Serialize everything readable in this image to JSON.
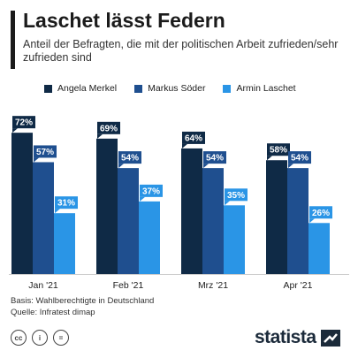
{
  "header": {
    "title": "Laschet lässt Federn",
    "subtitle": "Anteil der Befragten, die mit der politischen Arbeit zufrieden/sehr zufrieden sind"
  },
  "colors": {
    "merkel": "#0f2a46",
    "soeder": "#1f4f8f",
    "laschet": "#2a95e6"
  },
  "chart_data": {
    "type": "bar",
    "categories": [
      "Jan '21",
      "Feb '21",
      "Mrz '21",
      "Apr '21"
    ],
    "series": [
      {
        "name": "Angela Merkel",
        "values": [
          72,
          69,
          64,
          58
        ]
      },
      {
        "name": "Markus Söder",
        "values": [
          57,
          54,
          54,
          54
        ]
      },
      {
        "name": "Armin Laschet",
        "values": [
          31,
          37,
          35,
          26
        ]
      }
    ],
    "value_suffix": "%",
    "ylim": [
      0,
      80
    ],
    "legend_position": "top",
    "grid": false
  },
  "footer": {
    "basis": "Basis: Wahlberechtigte in Deutschland",
    "source": "Quelle: Infratest dimap"
  },
  "icons": [
    "cc-icon",
    "by-icon",
    "nd-icon"
  ],
  "brand": {
    "name": "statista"
  }
}
